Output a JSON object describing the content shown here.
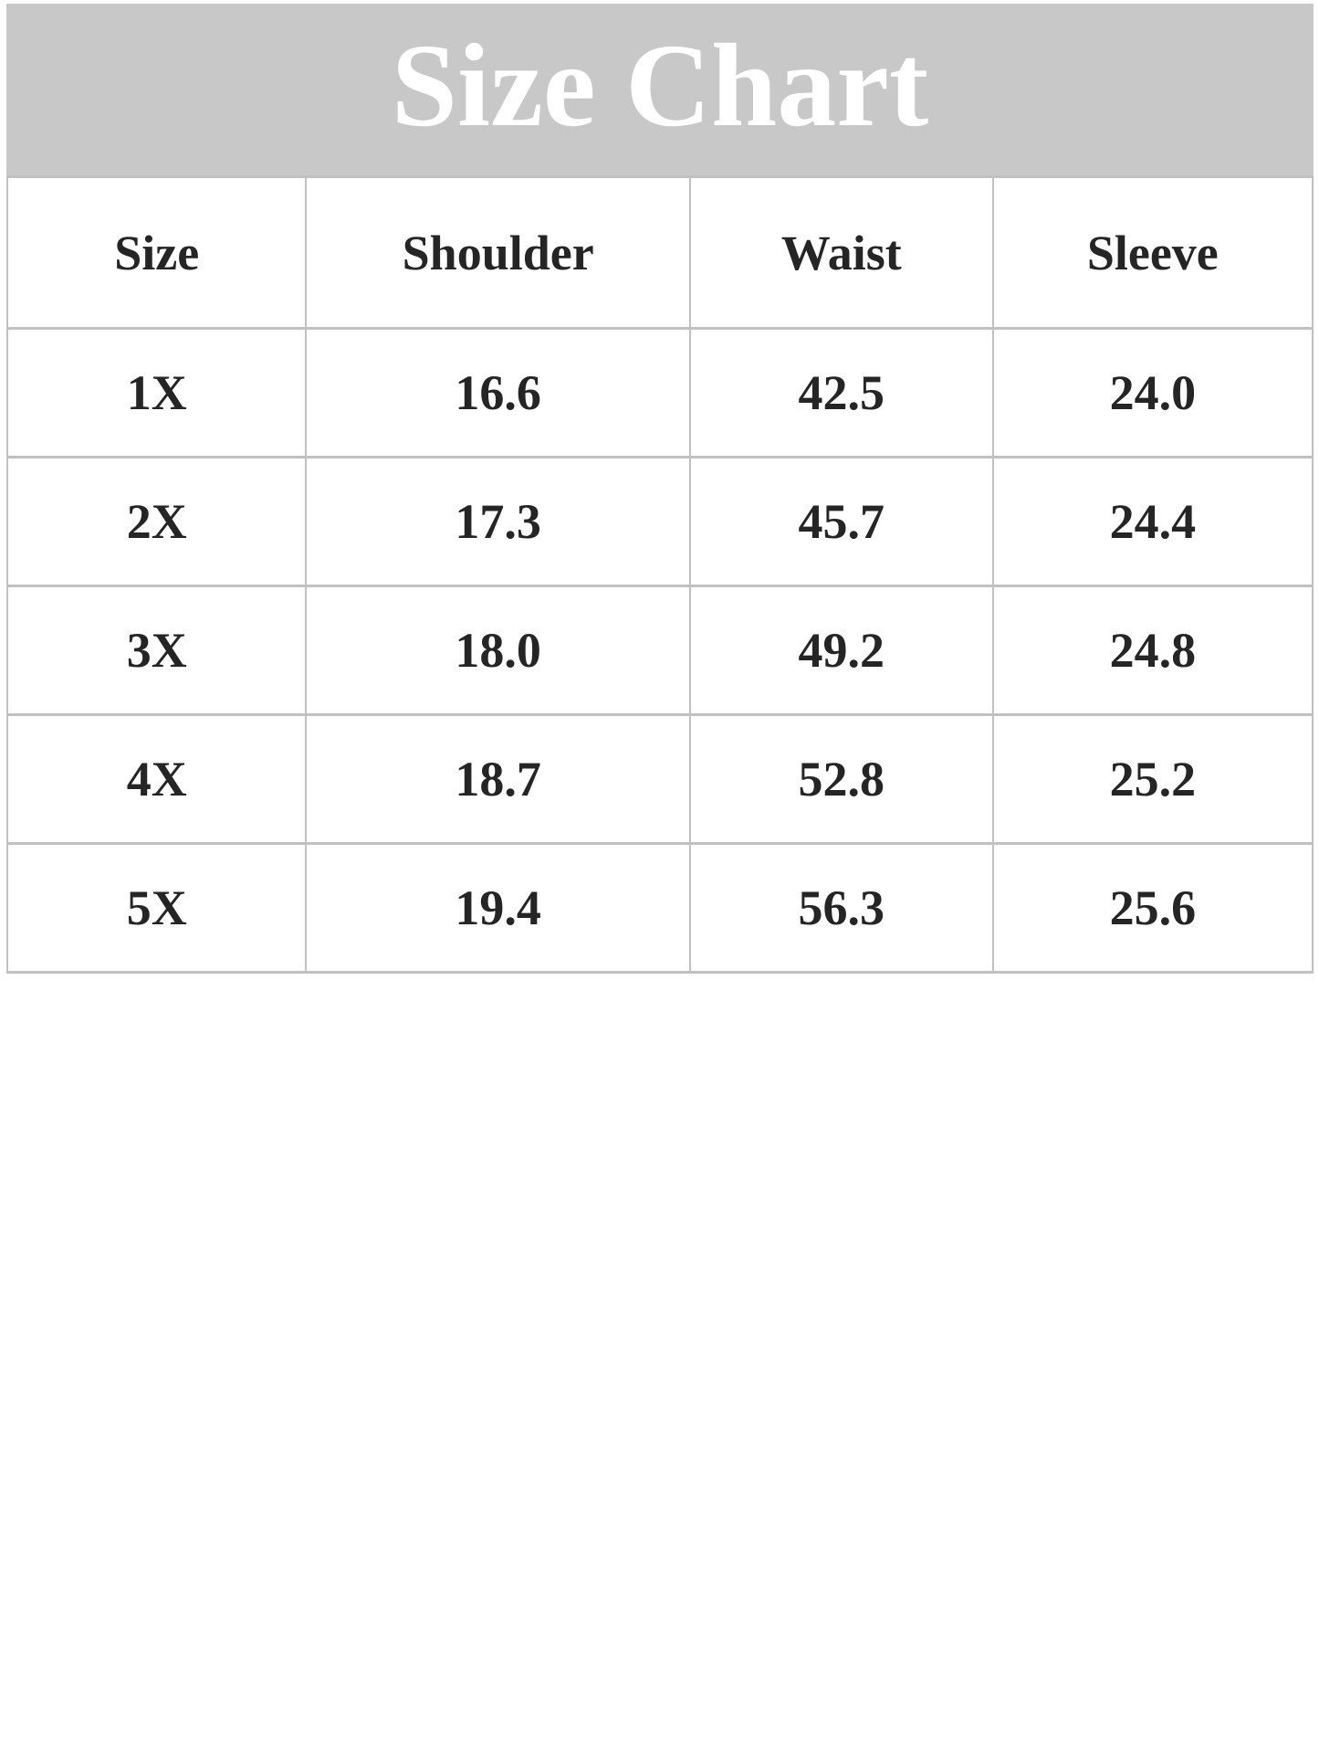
{
  "banner": {
    "title": "Size Chart",
    "background_color": "#c8c8c8",
    "title_color": "#ffffff"
  },
  "colors": {
    "table_border": "#c1c1c1",
    "cell_text": "#252525",
    "cell_background": "#ffffff"
  },
  "chart_data": {
    "type": "table",
    "title": "Size Chart",
    "columns": [
      "Size",
      "Shoulder",
      "Waist",
      "Sleeve"
    ],
    "rows": [
      [
        "1X",
        "16.6",
        "42.5",
        "24.0"
      ],
      [
        "2X",
        "17.3",
        "45.7",
        "24.4"
      ],
      [
        "3X",
        "18.0",
        "49.2",
        "24.8"
      ],
      [
        "4X",
        "18.7",
        "52.8",
        "25.2"
      ],
      [
        "5X",
        "19.4",
        "56.3",
        "25.6"
      ]
    ]
  }
}
